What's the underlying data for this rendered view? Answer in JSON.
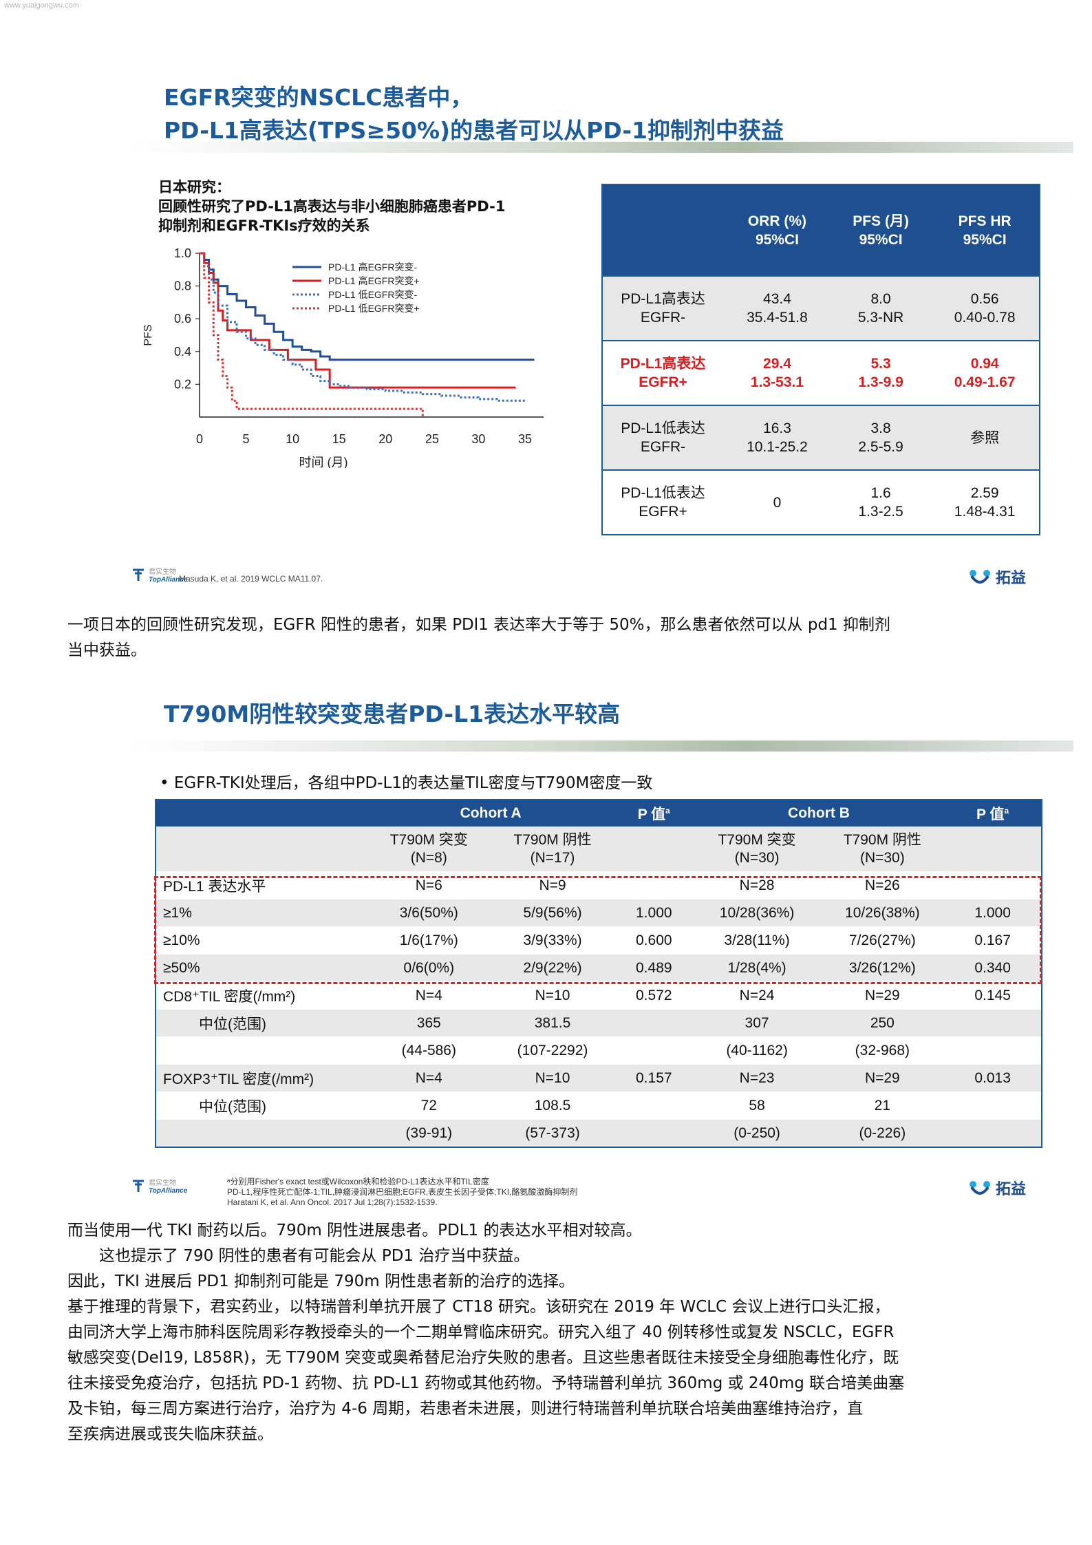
{
  "watermark": "www.yuaigongwu.com",
  "slide1": {
    "title_line1": "EGFR突变的NSCLC患者中，",
    "title_line2": "PD-L1高表达(TPS≥50%)的患者可以从PD-1抑制剂中获益",
    "study_heading": "日本研究：",
    "study_desc_line1": "回顾性研究了PD-L1高表达与非小细胞肺癌患者PD-1",
    "study_desc_line2": "抑制剂和EGFR-TKIs疗效的关系",
    "table": {
      "headers": [
        {
          "l1": "",
          "l2": ""
        },
        {
          "l1": "ORR (%)",
          "l2": "95%CI"
        },
        {
          "l1": "PFS (月)",
          "l2": "95%CI"
        },
        {
          "l1": "PFS HR",
          "l2": "95%CI"
        }
      ],
      "rows": [
        {
          "label1": "PD-L1高表达",
          "label2": "EGFR-",
          "orr1": "43.4",
          "orr2": "35.4-51.8",
          "pfs1": "8.0",
          "pfs2": "5.3-NR",
          "hr1": "0.56",
          "hr2": "0.40-0.78"
        },
        {
          "label1": "PD-L1高表达",
          "label2": "EGFR+",
          "orr1": "29.4",
          "orr2": "1.3-53.1",
          "pfs1": "5.3",
          "pfs2": "1.3-9.9",
          "hr1": "0.94",
          "hr2": "0.49-1.67"
        },
        {
          "label1": "PD-L1低表达",
          "label2": "EGFR-",
          "orr1": "16.3",
          "orr2": "10.1-25.2",
          "pfs1": "3.8",
          "pfs2": "2.5-5.9",
          "hr1": "参照",
          "hr2": ""
        },
        {
          "label1": "PD-L1低表达",
          "label2": "EGFR+",
          "orr1": "0",
          "orr2": "",
          "pfs1": "1.6",
          "pfs2": "1.3-2.5",
          "hr1": "2.59",
          "hr2": "1.48-4.31"
        }
      ]
    },
    "logo_left_cn": "君实生物",
    "logo_left_en": "TopAlliance",
    "citation": "Masuda K, et al. 2019 WCLC MA11.07.",
    "logo_right": "拓益"
  },
  "paragraph1_line1": "一项日本的回顾性研究发现，EGFR 阳性的患者，如果 PDl1 表达率大于等于 50%，那么患者依然可以从 pd1 抑制剂",
  "paragraph1_line2": "当中获益。",
  "slide2": {
    "title": "T790M阴性较突变患者PD-L1表达水平较高",
    "bullet": "EGFR-TKI处理后，各组中PD-L1的表达量TIL密度与T790M密度一致",
    "headers": [
      "",
      "Cohort A",
      "",
      "P 值",
      "Cohort B",
      "",
      "P 值"
    ],
    "p_sup": "a",
    "subheaders": [
      {
        "l1": "T790M 突变",
        "l2": "(N=8)"
      },
      {
        "l1": "T790M 阴性",
        "l2": "(N=17)"
      },
      {
        "l1": "T790M 突变",
        "l2": "(N=30)"
      },
      {
        "l1": "T790M 阴性",
        "l2": "(N=30)"
      }
    ],
    "rows": [
      {
        "label": "PD-L1 表达水平",
        "indent": false,
        "cells": [
          "N=6",
          "N=9",
          "",
          "N=28",
          "N=26",
          ""
        ]
      },
      {
        "label": "≥1%",
        "indent": false,
        "cells": [
          "3/6(50%)",
          "5/9(56%)",
          "1.000",
          "10/28(36%)",
          "10/26(38%)",
          "1.000"
        ]
      },
      {
        "label": "≥10%",
        "indent": false,
        "cells": [
          "1/6(17%)",
          "3/9(33%)",
          "0.600",
          "3/28(11%)",
          "7/26(27%)",
          "0.167"
        ]
      },
      {
        "label": "≥50%",
        "indent": false,
        "cells": [
          "0/6(0%)",
          "2/9(22%)",
          "0.489",
          "1/28(4%)",
          "3/26(12%)",
          "0.340"
        ]
      },
      {
        "label": "CD8⁺TIL 密度(/mm²)",
        "indent": false,
        "cells": [
          "N=4",
          "N=10",
          "0.572",
          "N=24",
          "N=29",
          "0.145"
        ]
      },
      {
        "label": "中位(范围)",
        "indent": true,
        "cells": [
          "365",
          "381.5",
          "",
          "307",
          "250",
          ""
        ]
      },
      {
        "label": "",
        "indent": true,
        "cells": [
          "(44-586)",
          "(107-2292)",
          "",
          "(40-1162)",
          "(32-968)",
          ""
        ]
      },
      {
        "label": "FOXP3⁺TIL 密度(/mm²)",
        "indent": false,
        "cells": [
          "N=4",
          "N=10",
          "0.157",
          "N=23",
          "N=29",
          "0.013"
        ]
      },
      {
        "label": "中位(范围)",
        "indent": true,
        "cells": [
          "72",
          "108.5",
          "",
          "58",
          "21",
          ""
        ]
      },
      {
        "label": "",
        "indent": true,
        "cells": [
          "(39-91)",
          "(57-373)",
          "",
          "(0-250)",
          "(0-226)",
          ""
        ]
      }
    ],
    "foot1": "ᵃ分别用Fisher's exact test或Wilcoxon秩和检验PD-L1表达水平和TIL密度",
    "foot2": "PD-L1,程序性死亡配体-1;TIL,肿瘤浸润淋巴细胞;EGFR,表皮生长因子受体;TKI,酪氨酸激酶抑制剂",
    "foot3": "Haratani K, et al. Ann Oncol. 2017 Jul 1;28(7):1532-1539.",
    "logo_left_cn": "君实生物",
    "logo_left_en": "TopAlliance",
    "logo_right": "拓益"
  },
  "paragraphs2": [
    "而当使用一代 TKI 耐药以后。790m 阴性进展患者。PDL1 的表达水平相对较高。",
    "这也提示了 790 阴性的患者有可能会从 PD1 治疗当中获益。",
    "因此，TKI 进展后 PD1 抑制剂可能是 790m 阴性患者新的治疗的选择。",
    "基于推理的背景下，君实药业，以特瑞普利单抗开展了 CT18 研究。该研究在 2019 年 WCLC 会议上进行口头汇报，",
    "由同济大学上海市肺科医院周彩存教授牵头的一个二期单臂临床研究。研究入组了 40 例转移性或复发 NSCLC，EGFR",
    "敏感突变(Del19, L858R)，无 T790M 突变或奥希替尼治疗失败的患者。且这些患者既往未接受全身细胞毒性化疗，既",
    "往未接受免疫治疗，包括抗 PD-1 药物、抗 PD-L1 药物或其他药物。予特瑞普利单抗 360mg 或 240mg 联合培美曲塞",
    "及卡铂，每三周方案进行治疗，治疗为 4-6 周期，若患者未进展，则进行特瑞普利单抗联合培美曲塞维持治疗，直",
    "至疾病进展或丧失临床获益。"
  ],
  "chart_data": {
    "type": "line",
    "title": "",
    "xlabel": "时间 (月)",
    "ylabel": "PFS",
    "xlim": [
      0,
      37
    ],
    "ylim": [
      0,
      1.0
    ],
    "xticks": [
      "0",
      "5",
      "10",
      "15",
      "20",
      "25",
      "30",
      "35"
    ],
    "yticks": [
      "0.2",
      "0.4",
      "0.6",
      "0.8",
      "1.0"
    ],
    "legend_position": "top-right",
    "colors": {
      "blue": "#1f4e9c",
      "red": "#d81e1e",
      "dotblue": "#3c6fc0",
      "dotred": "#e03030"
    },
    "series": [
      {
        "name": "PD-L1 高EGFR突变-",
        "style": "solid",
        "color": "#1f4e9c",
        "x": [
          0,
          0.5,
          1,
          1.5,
          2,
          3,
          4,
          5,
          6,
          7,
          8,
          9,
          10,
          11,
          12,
          13,
          14,
          20,
          30,
          36
        ],
        "y": [
          1.0,
          0.96,
          0.9,
          0.84,
          0.8,
          0.75,
          0.71,
          0.67,
          0.62,
          0.57,
          0.52,
          0.47,
          0.43,
          0.41,
          0.4,
          0.37,
          0.35,
          0.35,
          0.35,
          0.35
        ]
      },
      {
        "name": "PD-L1 高EGFR突变+",
        "style": "solid",
        "color": "#d81e1e",
        "x": [
          0,
          0.5,
          1,
          1.5,
          2,
          2.5,
          3,
          5,
          5.5,
          7,
          7.5,
          9,
          9.5,
          12,
          12.5,
          14,
          34
        ],
        "y": [
          1.0,
          0.94,
          0.88,
          0.82,
          0.65,
          0.59,
          0.53,
          0.53,
          0.47,
          0.47,
          0.41,
          0.41,
          0.35,
          0.35,
          0.29,
          0.18,
          0.18
        ]
      },
      {
        "name": "PD-L1 低EGFR突变-",
        "style": "dotted",
        "color": "#3c6fc0",
        "x": [
          0,
          0.5,
          1,
          1.5,
          2,
          3,
          4,
          5,
          6,
          7,
          8,
          9,
          10,
          11,
          12,
          13,
          14,
          15,
          16,
          18,
          20,
          22,
          24,
          26,
          28,
          30,
          32,
          35
        ],
        "y": [
          1.0,
          0.92,
          0.84,
          0.76,
          0.68,
          0.58,
          0.52,
          0.48,
          0.44,
          0.41,
          0.38,
          0.35,
          0.32,
          0.29,
          0.25,
          0.22,
          0.2,
          0.19,
          0.18,
          0.17,
          0.16,
          0.15,
          0.14,
          0.13,
          0.12,
          0.11,
          0.1,
          0.1
        ]
      },
      {
        "name": "PD-L1 低EGFR突变+",
        "style": "dotted",
        "color": "#e03030",
        "x": [
          0,
          0.5,
          1,
          1.5,
          2,
          2.5,
          3,
          3.5,
          4,
          10,
          20,
          24
        ],
        "y": [
          1.0,
          0.85,
          0.7,
          0.5,
          0.35,
          0.25,
          0.18,
          0.1,
          0.05,
          0.05,
          0.05,
          0.0
        ]
      }
    ]
  }
}
